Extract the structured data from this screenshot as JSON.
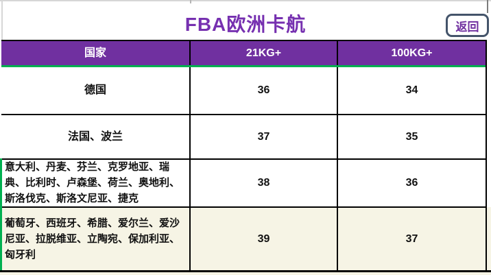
{
  "page": {
    "title": "FBA欧洲卡航",
    "back_button": "返回"
  },
  "table": {
    "headers": [
      "国家",
      "21KG+",
      "100KG+"
    ],
    "rows": [
      {
        "country": "德国",
        "kg21": "36",
        "kg100": "34"
      },
      {
        "country": "法国、波兰",
        "kg21": "37",
        "kg100": "35"
      },
      {
        "country": "意大利、丹麦、芬兰、克罗地亚、瑞典、比利时、卢森堡、荷兰、奥地利、斯洛伐克、斯洛文尼亚、捷克",
        "kg21": "38",
        "kg100": "36"
      },
      {
        "country": "葡萄牙、西班牙、希腊、爱尔兰、爱沙尼亚、拉脱维亚、立陶宛、保加利亚、匈牙利",
        "kg21": "39",
        "kg100": "37"
      }
    ]
  },
  "colors": {
    "accent_purple": "#7030A0",
    "header_bg": "#7030A0",
    "green_border": "#00B050",
    "last_row_bg": "#F6F4E5",
    "button_border": "#44546A"
  }
}
